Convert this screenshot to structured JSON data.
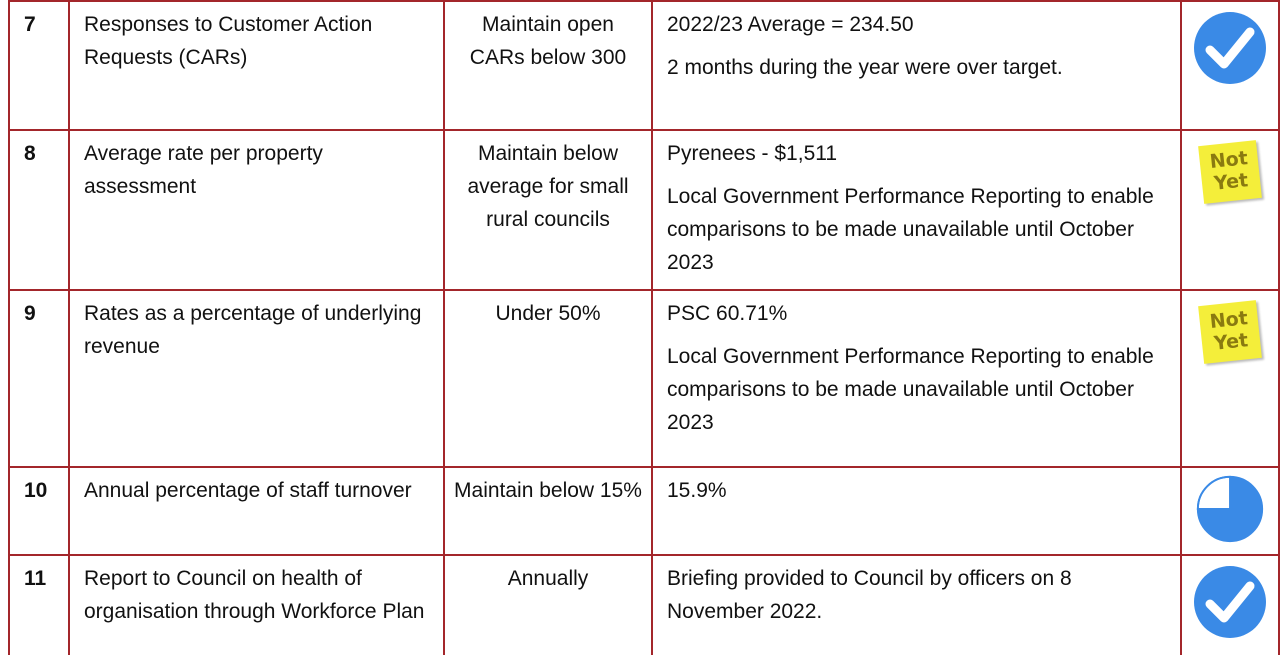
{
  "table": {
    "rows": [
      {
        "number": "7",
        "measure": "Responses to Customer Action Requests (CARs)",
        "target": "Maintain open CARs below 300",
        "result": [
          "2022/23 Average = 234.50",
          "2 months during the year were over target."
        ]
      },
      {
        "number": "8",
        "measure": "Average rate per property assessment",
        "target": "Maintain below average for small rural councils",
        "result": [
          "Pyrenees - $1,511",
          "Local Government Performance Reporting to enable comparisons to be made unavailable until October 2023"
        ],
        "status": "Not Yet"
      },
      {
        "number": "9",
        "measure": "Rates as a percentage of underlying revenue",
        "target": "Under 50%",
        "result": [
          "PSC 60.71%",
          "Local Government Performance Reporting to enable comparisons to be made unavailable until October 2023"
        ],
        "status": "Not Yet"
      },
      {
        "number": "10",
        "measure": "Annual percentage of staff turnover",
        "target": "Maintain below 15%",
        "result": [
          "15.9%"
        ]
      },
      {
        "number": "11",
        "measure": "Report to Council on health of organisation through Workforce Plan",
        "target": "Annually",
        "result": [
          "Briefing provided to Council by officers on 8 November 2022."
        ]
      }
    ]
  }
}
